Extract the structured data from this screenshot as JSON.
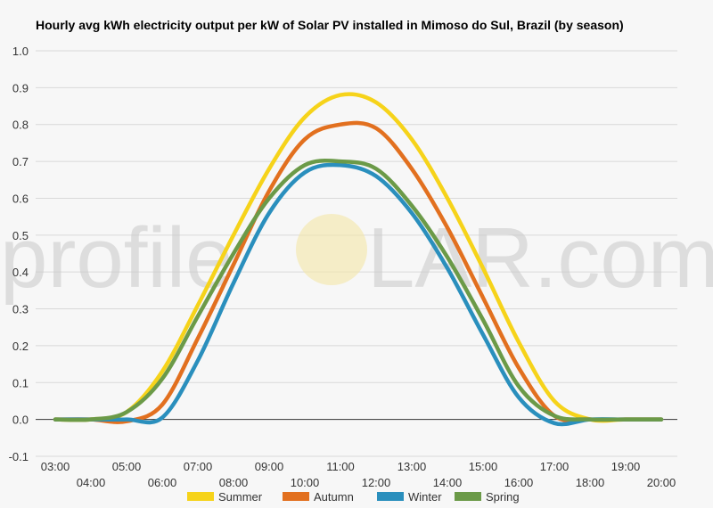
{
  "chart_data": {
    "type": "line",
    "title": "Hourly avg kWh electricity output per kW of Solar PV installed in Mimoso do Sul, Brazil (by season)",
    "xlabel": "",
    "ylabel": "",
    "ylim": [
      -0.1,
      1.0
    ],
    "yticks": [
      "1.0",
      "0.9",
      "0.8",
      "0.7",
      "0.6",
      "0.5",
      "0.4",
      "0.3",
      "0.2",
      "0.1",
      "0.0",
      "-0.1"
    ],
    "x": [
      "03:00",
      "04:00",
      "05:00",
      "06:00",
      "07:00",
      "08:00",
      "09:00",
      "10:00",
      "11:00",
      "12:00",
      "13:00",
      "14:00",
      "15:00",
      "16:00",
      "17:00",
      "18:00",
      "19:00",
      "20:00"
    ],
    "grid": true,
    "legend": "bottom",
    "series": [
      {
        "name": "Summer",
        "color": "#f6d31a",
        "values": [
          0.0,
          0.0,
          0.02,
          0.13,
          0.31,
          0.5,
          0.68,
          0.82,
          0.88,
          0.86,
          0.76,
          0.6,
          0.41,
          0.21,
          0.05,
          0.0,
          0.0,
          0.0
        ]
      },
      {
        "name": "Autumn",
        "color": "#e2701f",
        "values": [
          0.0,
          0.0,
          -0.005,
          0.04,
          0.22,
          0.42,
          0.62,
          0.76,
          0.8,
          0.79,
          0.68,
          0.52,
          0.33,
          0.14,
          0.01,
          0.0,
          0.0,
          0.0
        ]
      },
      {
        "name": "Winter",
        "color": "#2a8fbd",
        "values": [
          0.0,
          0.0,
          0.0,
          0.005,
          0.16,
          0.37,
          0.56,
          0.67,
          0.69,
          0.66,
          0.56,
          0.41,
          0.23,
          0.06,
          -0.01,
          0.0,
          0.0,
          0.0
        ]
      },
      {
        "name": "Spring",
        "color": "#6b9a48",
        "values": [
          0.0,
          0.0,
          0.02,
          0.11,
          0.28,
          0.45,
          0.6,
          0.69,
          0.7,
          0.68,
          0.58,
          0.44,
          0.27,
          0.09,
          0.01,
          0.0,
          0.0,
          0.0
        ]
      }
    ]
  },
  "watermark": {
    "left": "profile",
    "right": "LAR.com",
    "sun_color": "#f3e6a6"
  }
}
